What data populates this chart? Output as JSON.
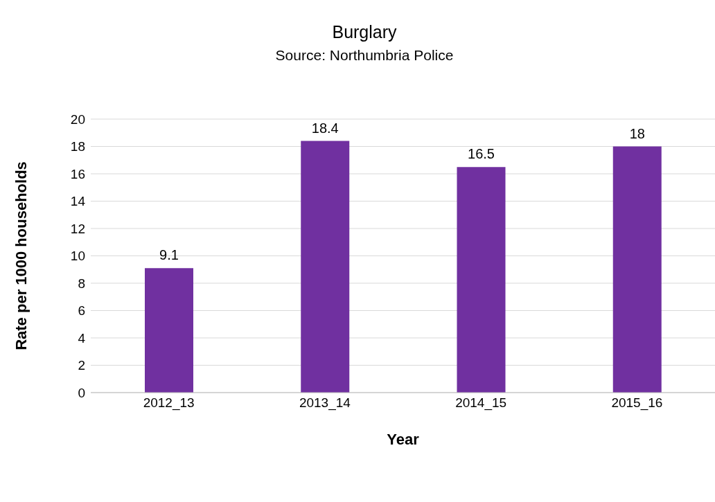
{
  "chart_data": {
    "type": "bar",
    "title": "Burglary",
    "subtitle": "Source: Northumbria Police",
    "xlabel": "Year",
    "ylabel": "Rate per 1000 households",
    "categories": [
      "2012_13",
      "2013_14",
      "2014_15",
      "2015_16"
    ],
    "values": [
      9.1,
      18.4,
      16.5,
      18
    ],
    "color": "#7030a0",
    "ylim": [
      0,
      20
    ],
    "yticks": [
      0,
      2,
      4,
      6,
      8,
      10,
      12,
      14,
      16,
      18,
      20
    ],
    "grid": "y",
    "data_labels": true
  }
}
